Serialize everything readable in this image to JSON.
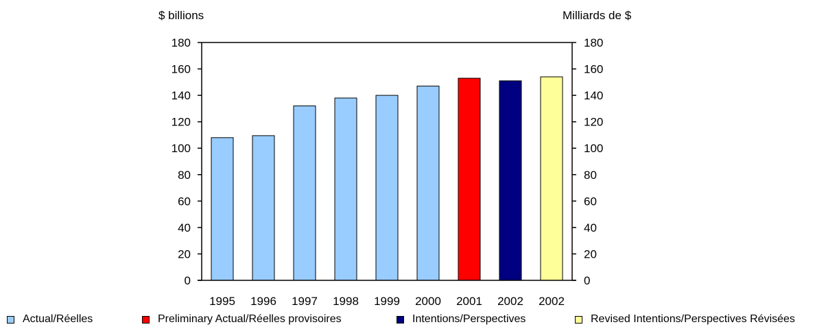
{
  "left_unit": "$ billions",
  "right_unit": "Milliards de $",
  "colors": {
    "actual": "#99ccff",
    "preliminary": "#ff0000",
    "intentions": "#000080",
    "revised": "#ffff99",
    "axis": "#000000"
  },
  "legend": [
    {
      "label": "Actual/Réelles",
      "color": "#99ccff"
    },
    {
      "label": "Preliminary Actual/Réelles provisoires",
      "color": "#ff0000"
    },
    {
      "label": "Intentions/Perspectives",
      "color": "#000080"
    },
    {
      "label": "Revised Intentions/Perspectives Révisées",
      "color": "#ffff99"
    }
  ],
  "chart_data": {
    "type": "bar",
    "categories": [
      "1995",
      "1996",
      "1997",
      "1998",
      "1999",
      "2000",
      "2001",
      "2002",
      "2002"
    ],
    "values": [
      108,
      109.5,
      132,
      138,
      140,
      147,
      153,
      151,
      154
    ],
    "bar_colors": [
      "#99ccff",
      "#99ccff",
      "#99ccff",
      "#99ccff",
      "#99ccff",
      "#99ccff",
      "#ff0000",
      "#000080",
      "#ffff99"
    ],
    "ylabel": "$ billions",
    "ylabel_right": "Milliards de $",
    "ylim": [
      0,
      180
    ],
    "yticks": [
      0,
      20,
      40,
      60,
      80,
      100,
      120,
      140,
      160,
      180
    ],
    "grid": false,
    "legend_position": "bottom"
  }
}
